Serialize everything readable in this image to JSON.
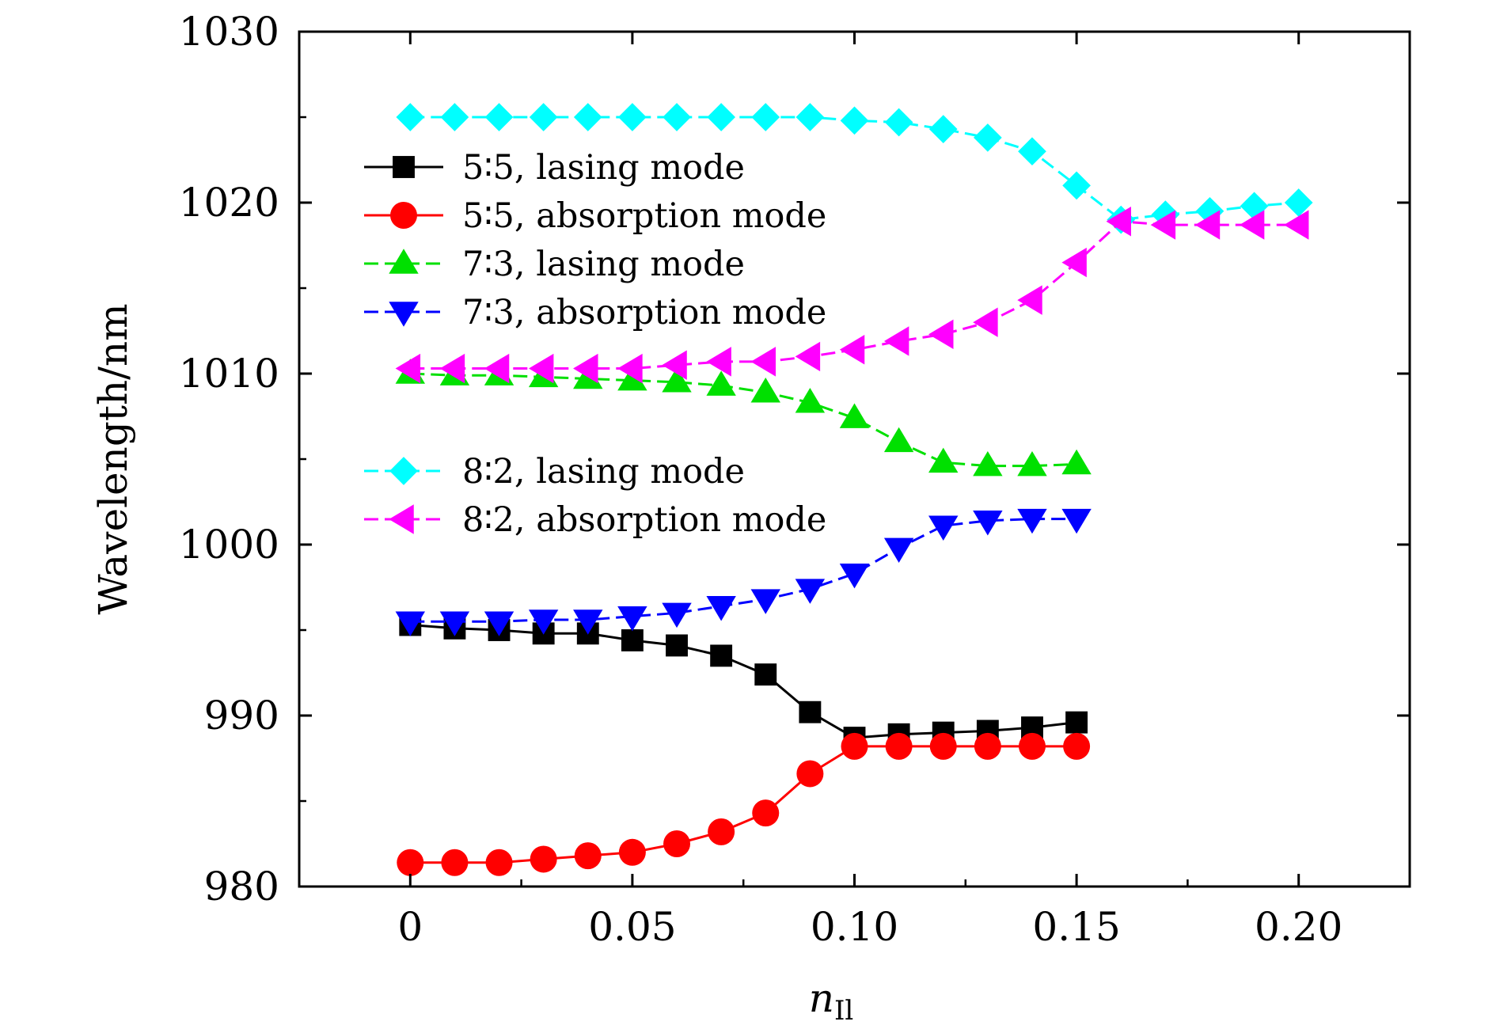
{
  "chart_data": {
    "type": "line",
    "title": "",
    "xlabel": "n",
    "xlabel_sub": "Il",
    "ylabel": "Wavelength/nm",
    "xlim": [
      -0.025,
      0.225
    ],
    "ylim": [
      980,
      1030
    ],
    "xticks": [
      {
        "value": 0,
        "label": "0"
      },
      {
        "value": 0.05,
        "label": "0.05"
      },
      {
        "value": 0.1,
        "label": "0.10"
      },
      {
        "value": 0.15,
        "label": "0.15"
      },
      {
        "value": 0.2,
        "label": "0.20"
      }
    ],
    "yticks": [
      {
        "value": 980,
        "label": "980"
      },
      {
        "value": 990,
        "label": "990"
      },
      {
        "value": 1000,
        "label": "1000"
      },
      {
        "value": 1010,
        "label": "1010"
      },
      {
        "value": 1020,
        "label": "1020"
      },
      {
        "value": 1030,
        "label": "1030"
      }
    ],
    "series": [
      {
        "name": "5∶5, lasing mode",
        "color": "#000000",
        "marker": "square",
        "dashed": false,
        "legend_group": 1,
        "x": [
          0,
          0.01,
          0.02,
          0.03,
          0.04,
          0.05,
          0.06,
          0.07,
          0.08,
          0.09,
          0.1,
          0.11,
          0.12,
          0.13,
          0.14,
          0.15
        ],
        "y": [
          995.3,
          995.1,
          995.0,
          994.8,
          994.8,
          994.4,
          994.1,
          993.5,
          992.4,
          990.2,
          988.7,
          988.9,
          989.0,
          989.1,
          989.3,
          989.6
        ]
      },
      {
        "name": "5∶5, absorption mode",
        "color": "#ff0000",
        "marker": "circle",
        "dashed": false,
        "legend_group": 1,
        "x": [
          0,
          0.01,
          0.02,
          0.03,
          0.04,
          0.05,
          0.06,
          0.07,
          0.08,
          0.09,
          0.1,
          0.11,
          0.12,
          0.13,
          0.14,
          0.15
        ],
        "y": [
          981.4,
          981.4,
          981.4,
          981.6,
          981.8,
          982.0,
          982.5,
          983.2,
          984.3,
          986.6,
          988.2,
          988.2,
          988.2,
          988.2,
          988.2,
          988.2
        ]
      },
      {
        "name": "7∶3, lasing mode",
        "color": "#00e000",
        "marker": "triangle-up",
        "dashed": true,
        "legend_group": 1,
        "x": [
          0,
          0.01,
          0.02,
          0.03,
          0.04,
          0.05,
          0.06,
          0.07,
          0.08,
          0.09,
          0.1,
          0.11,
          0.12,
          0.13,
          0.14,
          0.15
        ],
        "y": [
          1010.0,
          1009.9,
          1009.9,
          1009.8,
          1009.7,
          1009.6,
          1009.5,
          1009.3,
          1008.9,
          1008.3,
          1007.4,
          1006.0,
          1004.8,
          1004.6,
          1004.6,
          1004.7
        ]
      },
      {
        "name": "7∶3, absorption mode",
        "color": "#0000ff",
        "marker": "triangle-down",
        "dashed": true,
        "legend_group": 1,
        "x": [
          0,
          0.01,
          0.02,
          0.03,
          0.04,
          0.05,
          0.06,
          0.07,
          0.08,
          0.09,
          0.1,
          0.11,
          0.12,
          0.13,
          0.14,
          0.15
        ],
        "y": [
          995.5,
          995.5,
          995.5,
          995.6,
          995.6,
          995.8,
          996.0,
          996.4,
          996.8,
          997.4,
          998.3,
          999.8,
          1001.1,
          1001.4,
          1001.5,
          1001.5
        ]
      },
      {
        "name": "8∶2, lasing mode",
        "color": "#00ffff",
        "marker": "diamond",
        "dashed": true,
        "legend_group": 2,
        "x": [
          0,
          0.01,
          0.02,
          0.03,
          0.04,
          0.05,
          0.06,
          0.07,
          0.08,
          0.09,
          0.1,
          0.11,
          0.12,
          0.13,
          0.14,
          0.15,
          0.16,
          0.17,
          0.18,
          0.19,
          0.2
        ],
        "y": [
          1025.0,
          1025.0,
          1025.0,
          1025.0,
          1025.0,
          1025.0,
          1025.0,
          1025.0,
          1025.0,
          1025.0,
          1024.8,
          1024.7,
          1024.3,
          1023.8,
          1023.0,
          1021.0,
          1019.0,
          1019.3,
          1019.5,
          1019.8,
          1020.0
        ]
      },
      {
        "name": "8∶2, absorption mode",
        "color": "#ff00ff",
        "marker": "triangle-left",
        "dashed": true,
        "legend_group": 2,
        "x": [
          0,
          0.01,
          0.02,
          0.03,
          0.04,
          0.05,
          0.06,
          0.07,
          0.08,
          0.09,
          0.1,
          0.11,
          0.12,
          0.13,
          0.14,
          0.15,
          0.16,
          0.17,
          0.18,
          0.19,
          0.2
        ],
        "y": [
          1010.3,
          1010.3,
          1010.3,
          1010.3,
          1010.3,
          1010.3,
          1010.5,
          1010.7,
          1010.7,
          1011.0,
          1011.4,
          1011.9,
          1012.3,
          1013.0,
          1014.3,
          1016.5,
          1018.9,
          1018.7,
          1018.7,
          1018.7,
          1018.7
        ]
      }
    ]
  }
}
